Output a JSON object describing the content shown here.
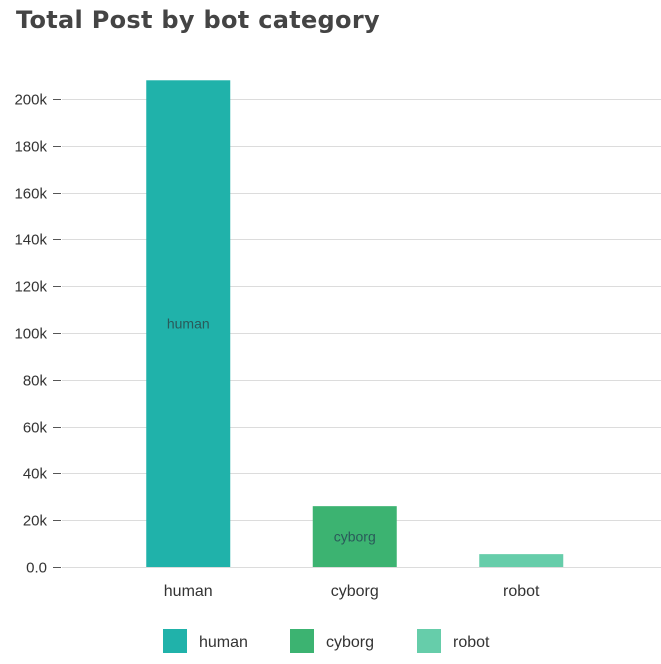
{
  "chart_data": {
    "type": "bar",
    "title": "Total Post by bot category",
    "categories": [
      "human",
      "cyborg",
      "robot"
    ],
    "values": [
      208000,
      26000,
      5500
    ],
    "bar_labels": [
      "human",
      "cyborg",
      ""
    ],
    "colors": [
      "#20b2aa",
      "#3cb371",
      "#66cdaa"
    ],
    "ylim": [
      0,
      200000
    ],
    "yticks": [
      0,
      20000,
      40000,
      60000,
      80000,
      100000,
      120000,
      140000,
      160000,
      180000,
      200000
    ],
    "ytick_labels": [
      "0.0",
      "20k",
      "40k",
      "60k",
      "80k",
      "100k",
      "120k",
      "140k",
      "160k",
      "180k",
      "200k"
    ],
    "grid": true,
    "legend": {
      "position": "bottom",
      "entries": [
        "human",
        "cyborg",
        "robot"
      ]
    }
  }
}
